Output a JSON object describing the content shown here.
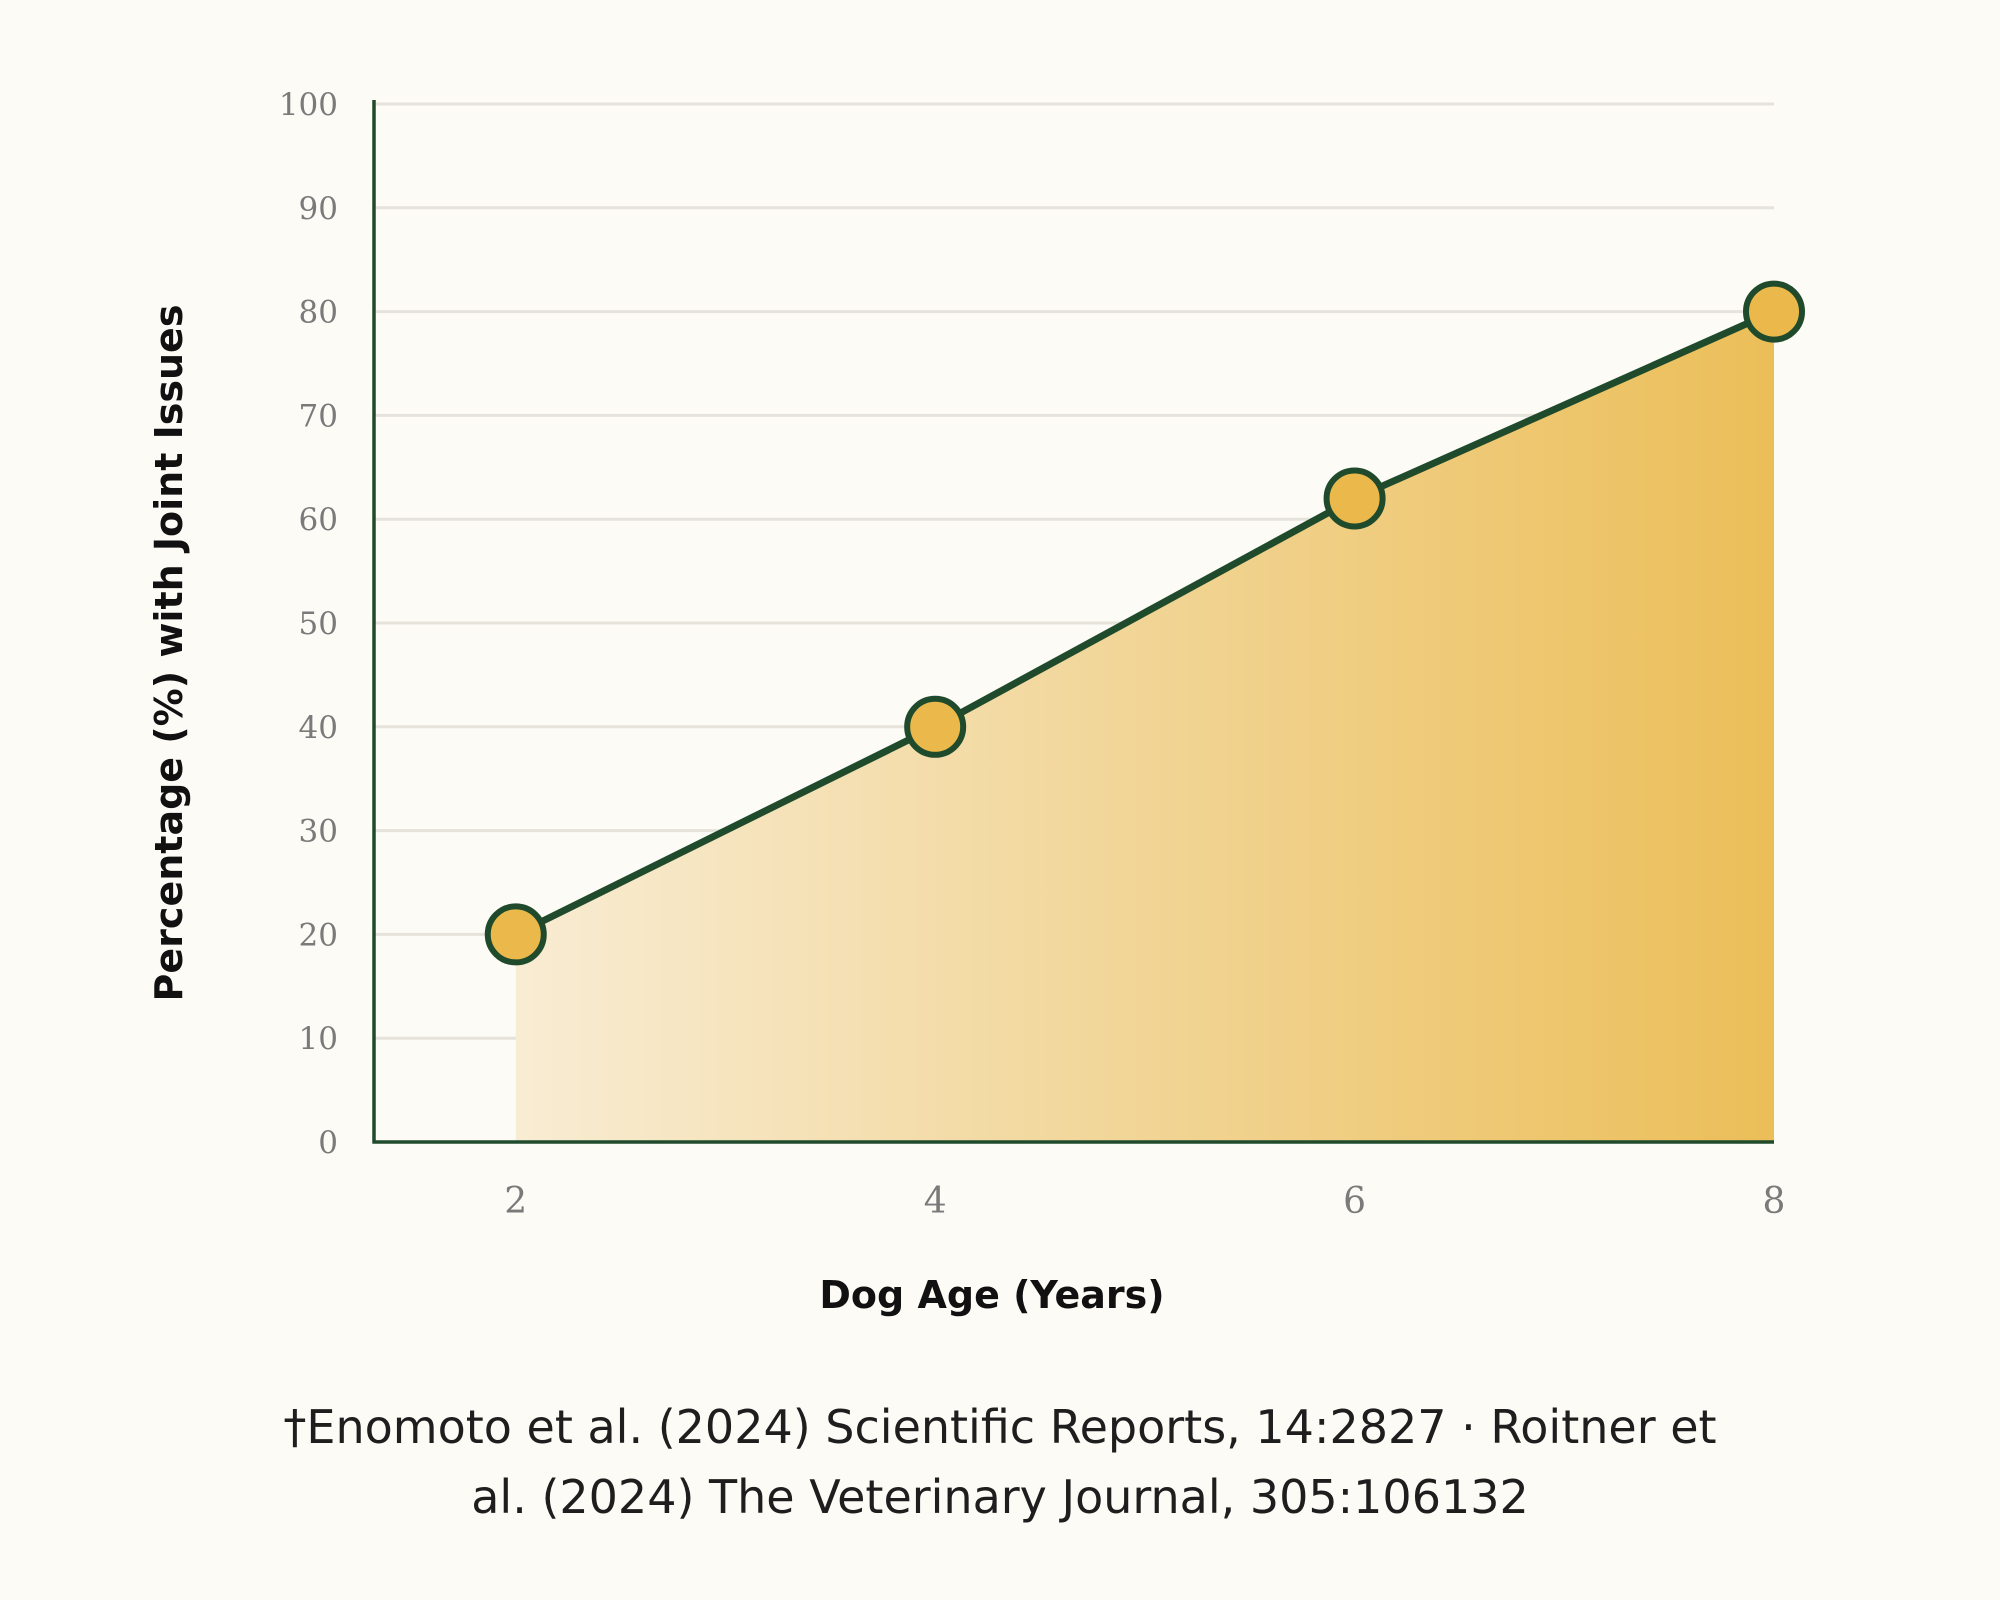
{
  "chart_data": {
    "type": "area",
    "x": [
      2,
      4,
      6,
      8
    ],
    "series": [
      {
        "values": [
          20,
          40,
          62,
          80
        ]
      }
    ],
    "xlabel": "Dog Age (Years)",
    "ylabel": "Percentage (%) with Joint Issues",
    "ylim": [
      0,
      100
    ],
    "y_ticks": [
      0,
      10,
      20,
      30,
      40,
      50,
      60,
      70,
      80,
      90,
      100
    ],
    "x_ticks": [
      2,
      4,
      6,
      8
    ],
    "grid": "horizontal",
    "legend": "none",
    "colors": {
      "line": "#1f4a2c",
      "marker_fill": "#ebb94b",
      "fill_light": "#f8ecd3",
      "fill_dark": "#ebbe58",
      "gridline": "#e6e3dc",
      "axis": "#1f4a2c"
    }
  },
  "citation": {
    "line1": "†Enomoto et al. (2024) Scientific Reports, 14:2827 · Roitner et",
    "line2": "al. (2024) The Veterinary Journal, 305:106132"
  }
}
